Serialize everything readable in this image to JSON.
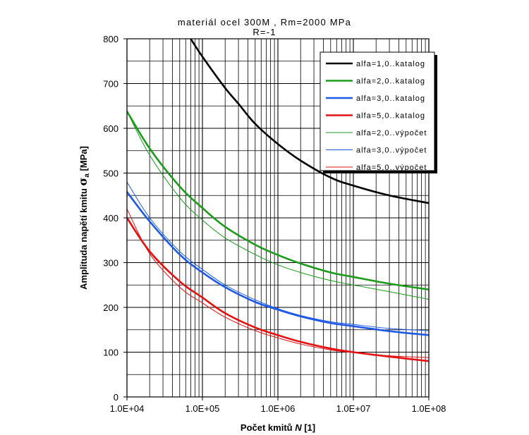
{
  "chart_data": {
    "type": "line",
    "title_line1": "materiál ocel 300M , Rm=2000 MPa",
    "title_line2": "R=-1",
    "xlabel_prefix": "Počet kmitů ",
    "xlabel_var": "N",
    "xlabel_suffix": "  [1]",
    "ylabel_prefix": "Amplituda napětí kmitu ",
    "ylabel_sigma": "σ",
    "ylabel_sub": "a",
    "ylabel_suffix": " [MPa]",
    "x_scale": "log",
    "xlim": [
      10000,
      100000000
    ],
    "ylim": [
      0,
      800
    ],
    "x_ticks": [
      10000,
      100000,
      1000000,
      10000000,
      100000000
    ],
    "x_tick_labels": [
      "1.0E+04",
      "1.0E+05",
      "1.0E+06",
      "1.0E+07",
      "1.0E+08"
    ],
    "y_ticks": [
      0,
      100,
      200,
      300,
      400,
      500,
      600,
      700,
      800
    ],
    "y_tick_labels": [
      "0",
      "100",
      "200",
      "300",
      "400",
      "500",
      "600",
      "700",
      "800"
    ],
    "grid": true,
    "legend_position": "top-right",
    "series": [
      {
        "name": "alfa=1,0..katalog",
        "color": "#000000",
        "style": "thick",
        "x": [
          70000,
          100000,
          200000,
          300000,
          500000,
          1000000,
          2000000,
          5000000,
          10000000,
          30000000,
          100000000
        ],
        "y": [
          800,
          760,
          690,
          655,
          610,
          565,
          528,
          490,
          472,
          450,
          433
        ]
      },
      {
        "name": "alfa=2,0..katalog",
        "color": "#1a9b1a",
        "style": "thick",
        "x": [
          10000,
          20000,
          50000,
          100000,
          200000,
          500000,
          1000000,
          2000000,
          5000000,
          10000000,
          30000000,
          100000000
        ],
        "y": [
          638,
          555,
          470,
          422,
          380,
          340,
          317,
          298,
          278,
          268,
          253,
          240
        ]
      },
      {
        "name": "alfa=3,0..katalog",
        "color": "#1e5ae6",
        "style": "thick",
        "x": [
          10000,
          20000,
          50000,
          100000,
          200000,
          500000,
          1000000,
          2000000,
          5000000,
          10000000,
          30000000,
          100000000
        ],
        "y": [
          458,
          392,
          318,
          278,
          245,
          212,
          195,
          180,
          165,
          158,
          147,
          138
        ]
      },
      {
        "name": "alfa=5,0..katalog",
        "color": "#e61010",
        "style": "thick",
        "x": [
          10000,
          20000,
          50000,
          100000,
          200000,
          500000,
          1000000,
          2000000,
          5000000,
          10000000,
          30000000,
          100000000
        ],
        "y": [
          400,
          325,
          258,
          222,
          187,
          155,
          138,
          123,
          108,
          100,
          90,
          80
        ]
      },
      {
        "name": "alfa=2,0..výpočet",
        "color": "#1a9b1a",
        "style": "thin",
        "x": [
          10000,
          20000,
          50000,
          100000,
          200000,
          500000,
          1000000,
          2000000,
          5000000,
          10000000,
          30000000,
          100000000
        ],
        "y": [
          638,
          540,
          445,
          395,
          355,
          318,
          295,
          278,
          260,
          250,
          235,
          218
        ]
      },
      {
        "name": "alfa=3,0..výpočet",
        "color": "#1e5ae6",
        "style": "thin",
        "x": [
          10000,
          20000,
          50000,
          100000,
          200000,
          500000,
          1000000,
          2000000,
          5000000,
          10000000,
          30000000,
          100000000
        ],
        "y": [
          480,
          400,
          325,
          285,
          250,
          217,
          197,
          182,
          168,
          162,
          153,
          148
        ]
      },
      {
        "name": "alfa=5,0..výpočet",
        "color": "#e61010",
        "style": "thin",
        "x": [
          10000,
          20000,
          50000,
          100000,
          200000,
          500000,
          1000000,
          2000000,
          5000000,
          10000000,
          30000000,
          100000000
        ],
        "y": [
          420,
          320,
          245,
          210,
          178,
          148,
          132,
          118,
          105,
          99,
          92,
          88
        ]
      }
    ]
  }
}
